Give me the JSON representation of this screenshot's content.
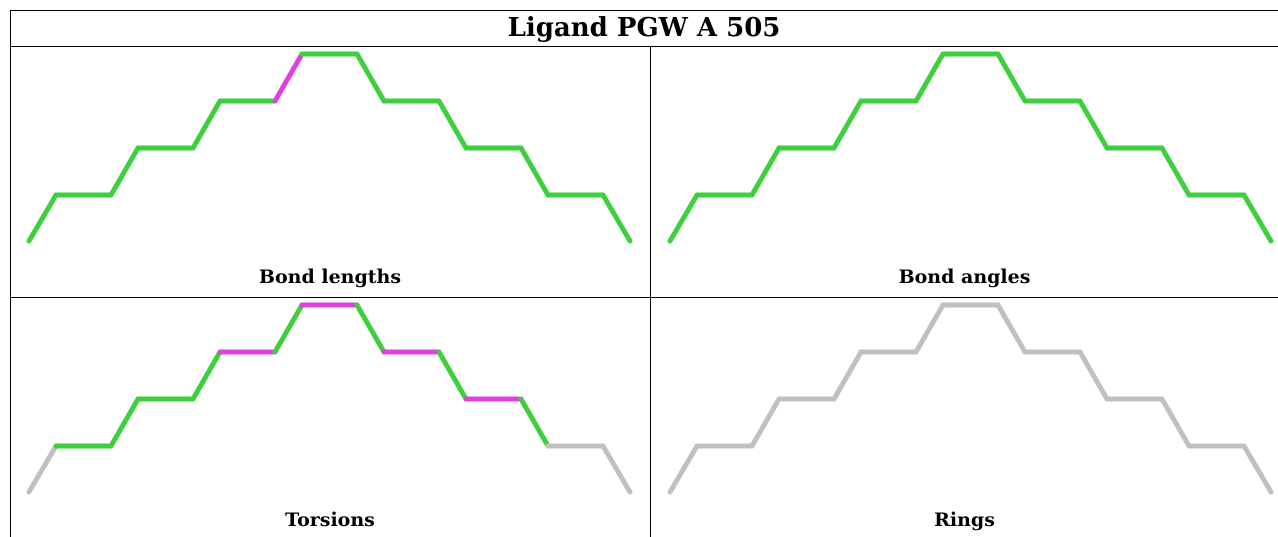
{
  "title": "Ligand PGW A 505",
  "colors": {
    "ok": "#3ecf3e",
    "outlier": "#e040e0",
    "na": "#c0c0c0"
  },
  "panels": [
    {
      "caption": "Bond lengths",
      "bonds": [
        "ok",
        "ok",
        "ok",
        "ok",
        "ok",
        "ok",
        "outlier",
        "ok",
        "ok",
        "ok",
        "ok",
        "ok",
        "ok",
        "ok",
        "ok"
      ]
    },
    {
      "caption": "Bond angles",
      "bonds": [
        "ok",
        "ok",
        "ok",
        "ok",
        "ok",
        "ok",
        "ok",
        "ok",
        "ok",
        "ok",
        "ok",
        "ok",
        "ok",
        "ok",
        "ok"
      ]
    },
    {
      "caption": "Torsions",
      "bonds": [
        "na",
        "ok",
        "ok",
        "ok",
        "ok",
        "outlier",
        "ok",
        "outlier",
        "ok",
        "outlier",
        "ok",
        "outlier",
        "ok",
        "na",
        "na"
      ]
    },
    {
      "caption": "Rings",
      "bonds": [
        "na",
        "na",
        "na",
        "na",
        "na",
        "na",
        "na",
        "na",
        "na",
        "na",
        "na",
        "na",
        "na",
        "na",
        "na"
      ]
    }
  ]
}
